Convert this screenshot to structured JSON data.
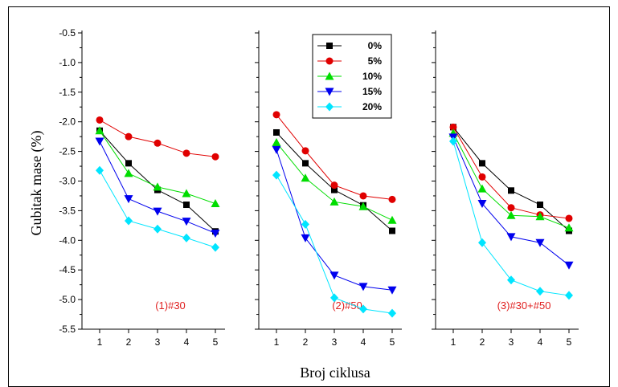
{
  "chart_data": {
    "type": "line",
    "ylabel": "Gubitak mase (%)",
    "xlabel": "Broj ciklusa",
    "ylim": [
      -5.5,
      -0.5
    ],
    "y_ticks": [
      "-0.5",
      "-1.0",
      "-1.5",
      "-2.0",
      "-2.5",
      "-3.0",
      "-3.5",
      "-4.0",
      "-4.5",
      "-5.0",
      "-5.5"
    ],
    "x_ticks": [
      "1",
      "2",
      "3",
      "4",
      "5"
    ],
    "legend": {
      "position": "top-center"
    },
    "series_styles": [
      {
        "name": "0%",
        "color": "#000000",
        "marker": "square"
      },
      {
        "name": "5%",
        "color": "#e00000",
        "marker": "circle"
      },
      {
        "name": "10%",
        "color": "#00dd00",
        "marker": "triangle-up"
      },
      {
        "name": "15%",
        "color": "#0000ee",
        "marker": "triangle-down"
      },
      {
        "name": "20%",
        "color": "#00e5ff",
        "marker": "diamond"
      }
    ],
    "panels": [
      {
        "label": "(1)#30",
        "x": [
          1,
          2,
          3,
          4,
          5
        ],
        "series": [
          {
            "name": "0%",
            "values": [
              -2.15,
              -2.7,
              -3.15,
              -3.4,
              -3.85
            ]
          },
          {
            "name": "5%",
            "values": [
              -1.97,
              -2.25,
              -2.36,
              -2.53,
              -2.59
            ]
          },
          {
            "name": "10%",
            "values": [
              -2.15,
              -2.87,
              -3.1,
              -3.21,
              -3.38
            ]
          },
          {
            "name": "15%",
            "values": [
              -2.33,
              -3.3,
              -3.51,
              -3.68,
              -3.88
            ]
          },
          {
            "name": "20%",
            "values": [
              -2.82,
              -3.67,
              -3.81,
              -3.96,
              -4.12
            ]
          }
        ]
      },
      {
        "label": "(2)#50",
        "x": [
          1,
          2,
          3,
          4,
          5
        ],
        "series": [
          {
            "name": "0%",
            "values": [
              -2.18,
              -2.7,
              -3.15,
              -3.41,
              -3.84
            ]
          },
          {
            "name": "5%",
            "values": [
              -1.88,
              -2.49,
              -3.07,
              -3.25,
              -3.31
            ]
          },
          {
            "name": "10%",
            "values": [
              -2.35,
              -2.95,
              -3.35,
              -3.43,
              -3.66
            ]
          },
          {
            "name": "15%",
            "values": [
              -2.47,
              -3.96,
              -4.59,
              -4.78,
              -4.84
            ]
          },
          {
            "name": "20%",
            "values": [
              -2.9,
              -3.73,
              -4.97,
              -5.16,
              -5.23
            ]
          }
        ]
      },
      {
        "label": "(3)#30+#50",
        "x": [
          1,
          2,
          3,
          4,
          5
        ],
        "series": [
          {
            "name": "0%",
            "values": [
              -2.09,
              -2.7,
              -3.16,
              -3.4,
              -3.84
            ]
          },
          {
            "name": "5%",
            "values": [
              -2.09,
              -2.93,
              -3.45,
              -3.57,
              -3.63
            ]
          },
          {
            "name": "10%",
            "values": [
              -2.19,
              -3.13,
              -3.58,
              -3.6,
              -3.79
            ]
          },
          {
            "name": "15%",
            "values": [
              -2.26,
              -3.38,
              -3.94,
              -4.04,
              -4.42
            ]
          },
          {
            "name": "20%",
            "values": [
              -2.33,
              -4.04,
              -4.67,
              -4.86,
              -4.93
            ]
          }
        ]
      }
    ]
  }
}
